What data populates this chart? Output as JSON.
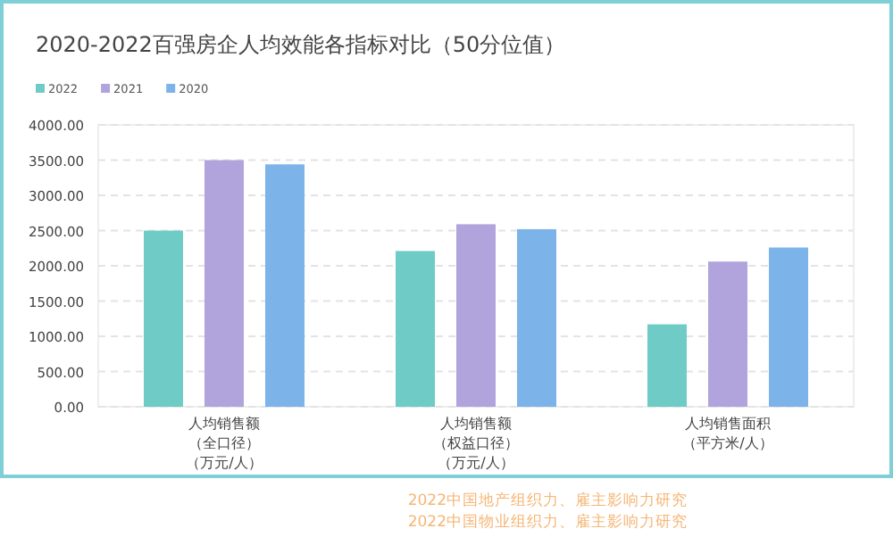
{
  "chart_data": {
    "type": "bar",
    "title": "2020-2022百强房企人均效能各指标对比（50分位值）",
    "categories": [
      "人均销售额（全口径）（万元/人）",
      "人均销售额（权益口径）（万元/人）",
      "人均销售面积（平方米/人）"
    ],
    "series": [
      {
        "name": "2022",
        "color": "#6ecbc6",
        "values": [
          2500,
          2210,
          1170
        ]
      },
      {
        "name": "2021",
        "color": "#b1a3dc",
        "values": [
          3500,
          2590,
          2060
        ]
      },
      {
        "name": "2020",
        "color": "#7cb4ea",
        "values": [
          3440,
          2520,
          2260
        ]
      }
    ],
    "ylim": [
      0,
      4000
    ],
    "yticks": [
      {
        "value": 0,
        "label": "0.00"
      },
      {
        "value": 500,
        "label": "500.00"
      },
      {
        "value": 1000,
        "label": "1000.00"
      },
      {
        "value": 1500,
        "label": "1500.00"
      },
      {
        "value": 2000,
        "label": "2000.00"
      },
      {
        "value": 2500,
        "label": "2500.00"
      },
      {
        "value": 3000,
        "label": "3000.00"
      },
      {
        "value": 3500,
        "label": "3500.00"
      },
      {
        "value": 4000,
        "label": "4000.00"
      }
    ],
    "grid": "y",
    "legend": "top left",
    "annotations": [
      "2022中国地产组织力、雇主影响力研究",
      "2022中国物业组织力、雇主影响力研究"
    ]
  }
}
